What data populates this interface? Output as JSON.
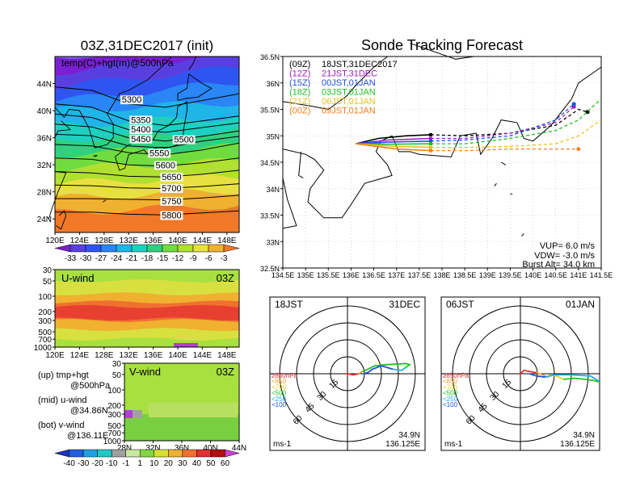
{
  "left_panel": {
    "title": "03Z,31DEC2017 (init)",
    "map_label": "temp(C)+hgt(m)@500hPa",
    "lat_ticks": [
      "44N",
      "40N",
      "36N",
      "32N",
      "28N",
      "24N"
    ],
    "lon_ticks": [
      "120E",
      "124E",
      "128E",
      "132E",
      "136E",
      "140E",
      "144E",
      "148E"
    ],
    "contour_labels": [
      "5300",
      "5350",
      "5400",
      "5450",
      "5500",
      "5550",
      "5600",
      "5650",
      "5700",
      "5750",
      "5800"
    ],
    "temp_colorbar": [
      "-33",
      "-30",
      "-27",
      "-24",
      "-21",
      "-18",
      "-15",
      "-12",
      "-9",
      "-6",
      "-3"
    ],
    "temp_colors": [
      "#7a1fd1",
      "#5a3fe0",
      "#2f55f0",
      "#2a85f5",
      "#1fb5e8",
      "#1fd0c0",
      "#30d080",
      "#70dc40",
      "#b0e030",
      "#e8e040",
      "#f0b030",
      "#f07828"
    ]
  },
  "uwind_panel": {
    "label": "U-wind",
    "time": "03Z",
    "p_ticks": [
      "30",
      "50",
      "100",
      "200",
      "300",
      "500",
      "700",
      "1000"
    ],
    "lon_ticks": [
      "120E",
      "124E",
      "128E",
      "132E",
      "136E",
      "140E",
      "144E",
      "148E"
    ]
  },
  "vwind_panel": {
    "label": "V-wind",
    "time": "03Z",
    "p_ticks": [
      "30",
      "50",
      "100",
      "200",
      "300",
      "500",
      "700",
      "1000"
    ],
    "lat_ticks": [
      "28N",
      "32N",
      "36N",
      "40N",
      "44N"
    ],
    "wind_colorbar": [
      "-40",
      "-30",
      "-20",
      "-10",
      "-1",
      "1",
      "10",
      "20",
      "30",
      "40",
      "50",
      "60"
    ],
    "wind_colors": [
      "#2030c0",
      "#2060e0",
      "#20a0e0",
      "#20c8c8",
      "#a0a0a0",
      "#c8e8a0",
      "#80d840",
      "#d8e030",
      "#f0b030",
      "#f07030",
      "#e03030",
      "#b01010",
      "#d040d0"
    ]
  },
  "legend_text": {
    "up_1": "(up)  tmp+hgt",
    "up_2": "@500hPa",
    "mid_1": "(mid)  u-wind",
    "mid_2": "@34.86N",
    "bot_1": "(bot)  v-wind",
    "bot_2": "@136.11E"
  },
  "track_panel": {
    "title": "Sonde Tracking Forecast",
    "legend": [
      {
        "code": "(09Z)",
        "label": "18JST,31DEC2017",
        "color": "#000000"
      },
      {
        "code": "(12Z)",
        "label": "21JST,31DEC",
        "color": "#a020c0"
      },
      {
        "code": "(15Z)",
        "label": "00JST,01JAN",
        "color": "#2050e0"
      },
      {
        "code": "(18Z)",
        "label": "03JST,01JAN",
        "color": "#20c020"
      },
      {
        "code": "(21Z)",
        "label": "06JST,01JAN",
        "color": "#e8c020"
      },
      {
        "code": "(00Z)",
        "label": "09JST,01JAN",
        "color": "#f08020"
      }
    ],
    "lat_ticks": [
      "36.5N",
      "36N",
      "35.5N",
      "35N",
      "34.5N",
      "34N",
      "33.5N",
      "33N",
      "32.5N"
    ],
    "lon_ticks": [
      "134.5E",
      "135E",
      "135.5E",
      "136E",
      "136.5E",
      "137E",
      "137.5E",
      "138E",
      "138.5E",
      "139E",
      "139.5E",
      "140E",
      "140.5E",
      "141E",
      "141.5E"
    ],
    "vup": "VUP=  6.0  m/s",
    "vdw": "VDW=  -3.0  m/s",
    "burst": "Burst Alt=  34.0  km"
  },
  "hodo_left": {
    "time_label": "18JST",
    "date_label": "31DEC",
    "rings": [
      "15",
      "30",
      "45",
      "60"
    ],
    "levels": [
      {
        "label": "≥850hPa",
        "color": "#e03030"
      },
      {
        "label": "<850",
        "color": "#f0a030"
      },
      {
        "label": "<700",
        "color": "#e8d020"
      },
      {
        "label": "<500",
        "color": "#20c020"
      },
      {
        "label": "<250",
        "color": "#20b0e0"
      },
      {
        "label": "<100",
        "color": "#2050e0"
      }
    ],
    "lat": "34.9N",
    "lon": "136.125E",
    "unit": "ms-1"
  },
  "hodo_right": {
    "time_label": "06JST",
    "date_label": "01JAN",
    "rings": [
      "15",
      "30",
      "45",
      "60"
    ],
    "levels": [
      {
        "label": "≥850hPa",
        "color": "#e03030"
      },
      {
        "label": "<850",
        "color": "#f0a030"
      },
      {
        "label": "<700",
        "color": "#e8d020"
      },
      {
        "label": "<500",
        "color": "#20c020"
      },
      {
        "label": "<250",
        "color": "#20b0e0"
      },
      {
        "label": "<100",
        "color": "#2050e0"
      }
    ],
    "lat": "34.9N",
    "lon": "136.125E",
    "unit": "ms-1"
  },
  "chart_data": [
    {
      "type": "heatmap",
      "title": "03Z,31DEC2017 (init)",
      "subtitle": "temp(C)+hgt(m)@500hPa",
      "xlim": [
        120,
        150
      ],
      "ylim": [
        22,
        48
      ],
      "contour_levels_m": [
        5300,
        5350,
        5400,
        5450,
        5500,
        5550,
        5600,
        5650,
        5700,
        5750,
        5800
      ],
      "colorbar_C": [
        -33,
        -30,
        -27,
        -24,
        -21,
        -18,
        -15,
        -12,
        -9,
        -6,
        -3
      ]
    },
    {
      "type": "heatmap",
      "title": "U-wind",
      "xlim": [
        120,
        150
      ],
      "y_pressure_hPa": [
        30,
        50,
        100,
        200,
        300,
        500,
        700,
        1000
      ]
    },
    {
      "type": "heatmap",
      "title": "V-wind",
      "xlim": [
        28,
        44
      ],
      "y_pressure_hPa": [
        30,
        50,
        100,
        200,
        300,
        500,
        700,
        1000
      ],
      "colorbar_ms": [
        -40,
        -30,
        -20,
        -10,
        -1,
        1,
        10,
        20,
        30,
        40,
        50,
        60
      ]
    },
    {
      "type": "line",
      "title": "Sonde Tracking Forecast",
      "xlim": [
        134.5,
        141.5
      ],
      "ylim": [
        32.5,
        36.5
      ],
      "series": [
        {
          "name": "(09Z) 18JST,31DEC2017",
          "color": "#000000",
          "points": [
            [
              136.1,
              34.85
            ],
            [
              136.6,
              34.95
            ],
            [
              137.2,
              35.0
            ],
            [
              137.75,
              35.02
            ],
            [
              138.5,
              35.0
            ],
            [
              139.5,
              35.05
            ],
            [
              140.5,
              35.2
            ],
            [
              141.0,
              35.5
            ],
            [
              141.2,
              35.45
            ]
          ]
        },
        {
          "name": "(12Z) 21JST,31DEC",
          "color": "#a020c0",
          "points": [
            [
              136.1,
              34.85
            ],
            [
              136.8,
              34.92
            ],
            [
              137.75,
              34.95
            ],
            [
              138.5,
              34.95
            ],
            [
              139.5,
              35.05
            ],
            [
              140.5,
              35.25
            ],
            [
              140.9,
              35.55
            ]
          ]
        },
        {
          "name": "(15Z) 00JST,01JAN",
          "color": "#2050e0",
          "points": [
            [
              136.1,
              34.85
            ],
            [
              136.8,
              34.88
            ],
            [
              137.75,
              34.9
            ],
            [
              138.5,
              34.92
            ],
            [
              139.5,
              35.0
            ],
            [
              140.5,
              35.3
            ],
            [
              140.9,
              35.6
            ]
          ]
        },
        {
          "name": "(18Z) 03JST,01JAN",
          "color": "#20c020",
          "points": [
            [
              136.1,
              34.85
            ],
            [
              136.8,
              34.84
            ],
            [
              137.75,
              34.85
            ],
            [
              138.5,
              34.85
            ],
            [
              139.5,
              34.95
            ],
            [
              140.5,
              35.1
            ],
            [
              141.0,
              35.3
            ],
            [
              141.5,
              35.7
            ]
          ]
        },
        {
          "name": "(21Z) 06JST,01JAN",
          "color": "#e8c020",
          "points": [
            [
              136.1,
              34.85
            ],
            [
              137.0,
              34.8
            ],
            [
              137.75,
              34.78
            ],
            [
              138.5,
              34.78
            ],
            [
              139.5,
              34.8
            ],
            [
              140.5,
              34.85
            ],
            [
              141.0,
              35.0
            ],
            [
              141.5,
              35.3
            ]
          ]
        },
        {
          "name": "(00Z) 09JST,01JAN",
          "color": "#f08020",
          "points": [
            [
              136.1,
              34.85
            ],
            [
              137.0,
              34.75
            ],
            [
              137.75,
              34.72
            ],
            [
              138.5,
              34.72
            ],
            [
              139.5,
              34.75
            ],
            [
              140.5,
              34.75
            ],
            [
              141.0,
              34.75
            ]
          ]
        }
      ]
    }
  ]
}
